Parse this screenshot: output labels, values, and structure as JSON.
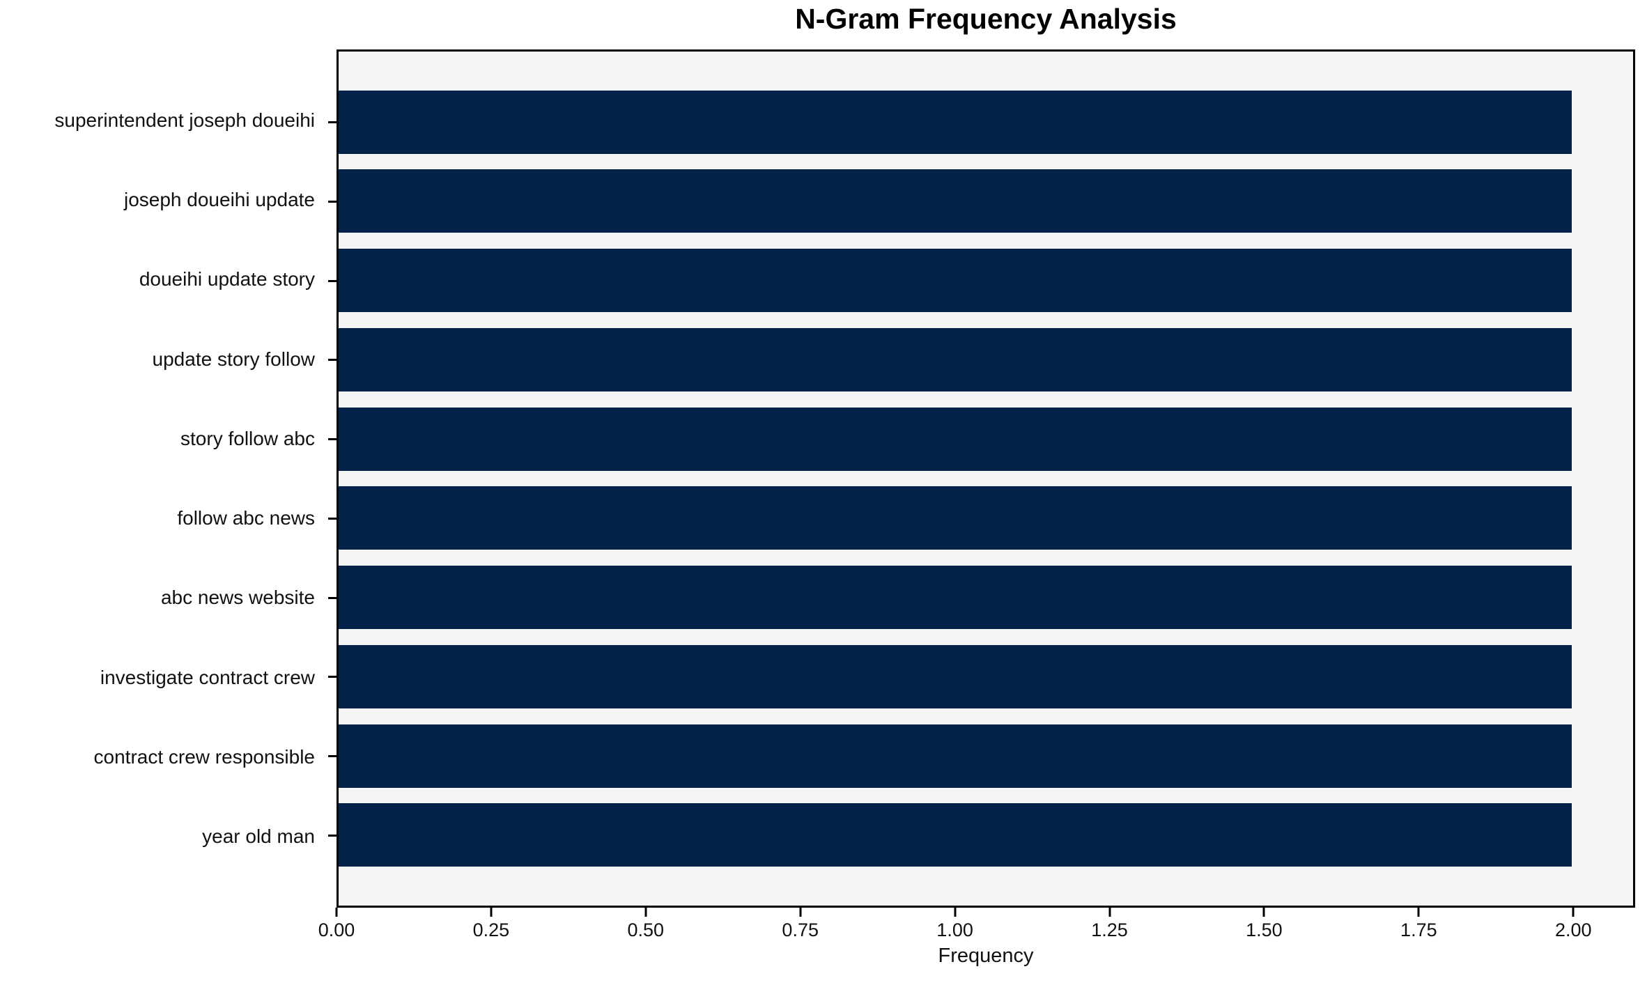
{
  "title": "N-Gram Frequency Analysis",
  "colors": {
    "bar": "#052248",
    "plot_background": "#f5f5f6",
    "figure_background": "#ffffff",
    "axis": "#000000"
  },
  "chart_data": {
    "type": "bar",
    "orientation": "horizontal",
    "title": "N-Gram Frequency Analysis",
    "categories": [
      "superintendent joseph doueihi",
      "joseph doueihi update",
      "doueihi update story",
      "update story follow",
      "story follow abc",
      "follow abc news",
      "abc news website",
      "investigate contract crew",
      "contract crew responsible",
      "year old man"
    ],
    "values": [
      2,
      2,
      2,
      2,
      2,
      2,
      2,
      2,
      2,
      2
    ],
    "xlabel": "Frequency",
    "ylabel": "",
    "xlim": [
      0,
      2.1
    ],
    "x_ticks": [
      "0.00",
      "0.25",
      "0.50",
      "0.75",
      "1.00",
      "1.25",
      "1.50",
      "1.75",
      "2.00"
    ],
    "x_tick_values": [
      0,
      0.25,
      0.5,
      0.75,
      1.0,
      1.25,
      1.5,
      1.75,
      2.0
    ],
    "bar_relative_height": 0.8,
    "grid": false,
    "legend_position": "none"
  }
}
